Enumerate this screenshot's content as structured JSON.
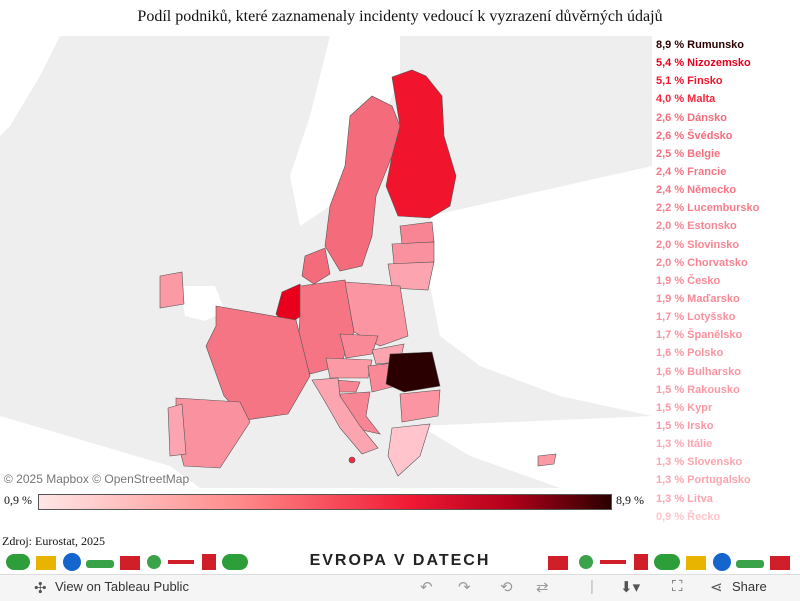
{
  "title": "Podíl podniků, které zaznamenaly incidenty vedoucí k vyzrazení důvěrných údajů",
  "map": {
    "attribution": "© 2025 Mapbox © OpenStreetMap",
    "scale_min_label": "0,9 %",
    "scale_max_label": "8,9 %"
  },
  "source": "Zdroj: Eurostat, 2025",
  "banner": {
    "brand": "EVROPA V DATECH"
  },
  "toolbar": {
    "view_label": "View on Tableau Public",
    "share_label": "Share",
    "icons": [
      "tableau-icon",
      "undo-icon",
      "redo-icon",
      "revert-icon",
      "refresh-icon",
      "download-icon",
      "fullscreen-icon",
      "share-icon"
    ]
  },
  "chart_data": {
    "type": "choropleth",
    "unit": "%",
    "color_range": [
      "#ffe6e6",
      "#2a0000"
    ],
    "values": [
      {
        "label": "8,9 % Rumunsko",
        "country": "Rumunsko",
        "value": 8.9,
        "color": "#2a0000"
      },
      {
        "label": "5,4 % Nizozemsko",
        "country": "Nizozemsko",
        "value": 5.4,
        "color": "#e8001c"
      },
      {
        "label": "5,1 % Finsko",
        "country": "Finsko",
        "value": 5.1,
        "color": "#f0142d"
      },
      {
        "label": "4,0 % Malta",
        "country": "Malta",
        "value": 4.0,
        "color": "#f5283f"
      },
      {
        "label": "2,6 % Dánsko",
        "country": "Dánsko",
        "value": 2.6,
        "color": "#f46c7c"
      },
      {
        "label": "2,6 % Švédsko",
        "country": "Švédsko",
        "value": 2.6,
        "color": "#f46c7c"
      },
      {
        "label": "2,5 % Belgie",
        "country": "Belgie",
        "value": 2.5,
        "color": "#f5707f"
      },
      {
        "label": "2,4 % Francie",
        "country": "Francie",
        "value": 2.4,
        "color": "#f67584"
      },
      {
        "label": "2,4 % Německo",
        "country": "Německo",
        "value": 2.4,
        "color": "#f67584"
      },
      {
        "label": "2,2 % Lucembursko",
        "country": "Lucembursko",
        "value": 2.2,
        "color": "#f77d8c"
      },
      {
        "label": "2,0 % Estonsko",
        "country": "Estonsko",
        "value": 2.0,
        "color": "#f88593"
      },
      {
        "label": "2,0 % Slovinsko",
        "country": "Slovinsko",
        "value": 2.0,
        "color": "#f88593"
      },
      {
        "label": "2,0 % Chorvatsko",
        "country": "Chorvatsko",
        "value": 2.0,
        "color": "#f88593"
      },
      {
        "label": "1,9 % Česko",
        "country": "Česko",
        "value": 1.9,
        "color": "#f98997"
      },
      {
        "label": "1,9 % Maďarsko",
        "country": "Maďarsko",
        "value": 1.9,
        "color": "#f98997"
      },
      {
        "label": "1,7 % Lotyšsko",
        "country": "Lotyšsko",
        "value": 1.7,
        "color": "#fa919e"
      },
      {
        "label": "1,7 % Španělsko",
        "country": "Španělsko",
        "value": 1.7,
        "color": "#fa919e"
      },
      {
        "label": "1,6 % Polsko",
        "country": "Polsko",
        "value": 1.6,
        "color": "#fa95a1"
      },
      {
        "label": "1,6 % Bulharsko",
        "country": "Bulharsko",
        "value": 1.6,
        "color": "#fa95a1"
      },
      {
        "label": "1,5 % Rakousko",
        "country": "Rakousko",
        "value": 1.5,
        "color": "#fb99a5"
      },
      {
        "label": "1,5 % Kypr",
        "country": "Kypr",
        "value": 1.5,
        "color": "#fb99a5"
      },
      {
        "label": "1,5 % Irsko",
        "country": "Irsko",
        "value": 1.5,
        "color": "#fb99a5"
      },
      {
        "label": "1,3 % Itálie",
        "country": "Itálie",
        "value": 1.3,
        "color": "#fca5b0"
      },
      {
        "label": "1,3 % Slovensko",
        "country": "Slovensko",
        "value": 1.3,
        "color": "#fca5b0"
      },
      {
        "label": "1,3 % Portugalsko",
        "country": "Portugalsko",
        "value": 1.3,
        "color": "#fca5b0"
      },
      {
        "label": "1,3 % Litva",
        "country": "Litva",
        "value": 1.3,
        "color": "#fca5b0"
      },
      {
        "label": "0,9 % Řecko",
        "country": "Řecko",
        "value": 0.9,
        "color": "#ffc4cc"
      }
    ]
  }
}
